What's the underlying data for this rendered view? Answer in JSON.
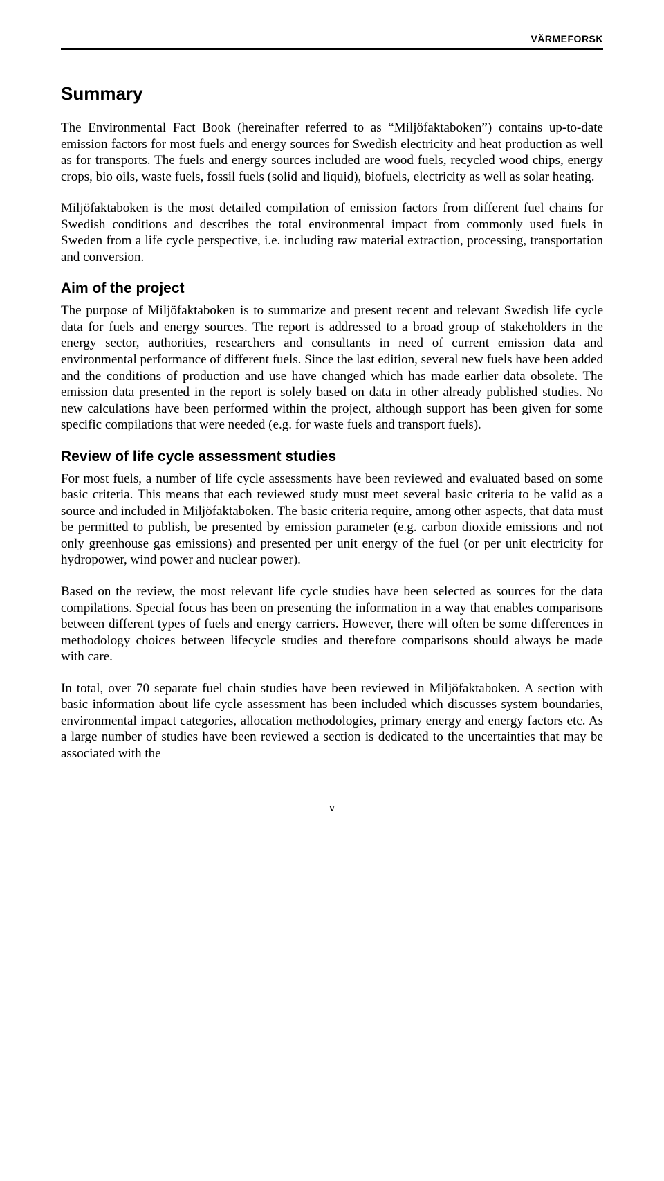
{
  "header": {
    "brand": "VÄRMEFORSK"
  },
  "title": "Summary",
  "paragraphs": {
    "p1": "The Environmental Fact Book (hereinafter referred to as “Miljöfaktaboken”) contains up-to-date emission factors for most fuels and energy sources for Swedish electricity and heat production as well as for transports. The fuels and energy sources included are wood fuels, recycled wood chips, energy crops, bio oils, waste fuels, fossil fuels (solid and liquid), biofuels, electricity as well as solar heating.",
    "p2": "Miljöfaktaboken is the most detailed compilation of emission factors from different fuel chains for Swedish conditions and describes the total environmental impact from commonly used fuels in Sweden from a life cycle perspective, i.e. including raw material extraction, processing, transportation and conversion."
  },
  "sections": {
    "aim": {
      "heading": "Aim of the project",
      "body": "The purpose of Miljöfaktaboken is to summarize and present recent and relevant Swedish life cycle data for fuels and energy sources. The report is addressed to a broad group of stakeholders in the energy sector, authorities, researchers and consultants in need of current emission data and environmental performance of different fuels. Since the last edition, several new fuels have been added and the conditions of production and use have changed which has made earlier data obsolete. The emission data presented in the report is solely based on data in other already published studies. No new calculations have been performed within the project, although support has been given for some specific compilations that were needed (e.g. for waste fuels and transport fuels)."
    },
    "review": {
      "heading": "Review of life cycle assessment studies",
      "b1": "For most fuels, a number of life cycle assessments have been reviewed and evaluated based on some basic criteria. This means that each reviewed study must meet several basic criteria to be valid as a source and included in Miljöfaktaboken. The basic criteria require, among other aspects, that data must be permitted to publish, be presented by emission parameter (e.g. carbon dioxide emissions and not only greenhouse gas emissions) and presented per unit energy of the fuel (or per unit electricity for hydropower, wind power and nuclear power).",
      "b2": "Based on the review, the most relevant life cycle studies have been selected as sources for the data compilations. Special focus has been on presenting the information in a way that enables comparisons between different types of fuels and energy carriers. However, there will often be some differences in methodology choices between lifecycle studies and therefore comparisons should always be made with care.",
      "b3": "In total, over 70 separate fuel chain studies have been reviewed in Miljöfaktaboken. A section with basic information about life cycle assessment has been included which discusses system boundaries, environmental impact categories, allocation methodologies, primary energy and energy factors etc. As a large number of studies have been reviewed a section is dedicated to the uncertainties that may be associated with the"
    }
  },
  "page_number": "v"
}
